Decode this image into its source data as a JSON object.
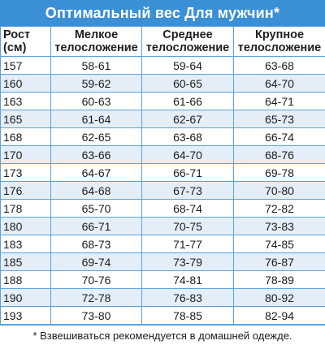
{
  "title": "Оптимальный вес Для мужчин*",
  "headers": {
    "height": [
      "Рост",
      "(см)"
    ],
    "small": [
      "Мелкое",
      "телосложение"
    ],
    "medium": [
      "Среднее",
      "телосложение"
    ],
    "large": [
      "Крупное",
      "телосложение"
    ]
  },
  "rows": [
    {
      "height": "157",
      "small": "58-61",
      "medium": "59-64",
      "large": "63-68"
    },
    {
      "height": "160",
      "small": "59-62",
      "medium": "60-65",
      "large": "64-70"
    },
    {
      "height": "163",
      "small": "60-63",
      "medium": "61-66",
      "large": "64-71"
    },
    {
      "height": "165",
      "small": "61-64",
      "medium": "62-67",
      "large": "65-73"
    },
    {
      "height": "168",
      "small": "62-65",
      "medium": "63-68",
      "large": "66-74"
    },
    {
      "height": "170",
      "small": "63-66",
      "medium": "64-70",
      "large": "68-76"
    },
    {
      "height": "173",
      "small": "64-67",
      "medium": "66-71",
      "large": "69-78"
    },
    {
      "height": "176",
      "small": "64-68",
      "medium": "67-73",
      "large": "70-80"
    },
    {
      "height": "178",
      "small": "65-70",
      "medium": "68-74",
      "large": "72-82"
    },
    {
      "height": "180",
      "small": "66-71",
      "medium": "70-75",
      "large": "73-83"
    },
    {
      "height": "183",
      "small": "68-73",
      "medium": "71-77",
      "large": "74-85"
    },
    {
      "height": "185",
      "small": "69-74",
      "medium": "73-79",
      "large": "76-87"
    },
    {
      "height": "188",
      "small": "70-76",
      "medium": "74-81",
      "large": "78-89"
    },
    {
      "height": "190",
      "small": "72-78",
      "medium": "76-83",
      "large": "80-92"
    },
    {
      "height": "193",
      "small": "73-80",
      "medium": "78-85",
      "large": "82-94"
    }
  ],
  "footnote": "* Взвешиваться рекомендуется в домашней одежде.",
  "colors": {
    "title_bar": "#3a8fd5",
    "grid_lines": "#5aa2dd",
    "stripe": "#e4eef8"
  }
}
